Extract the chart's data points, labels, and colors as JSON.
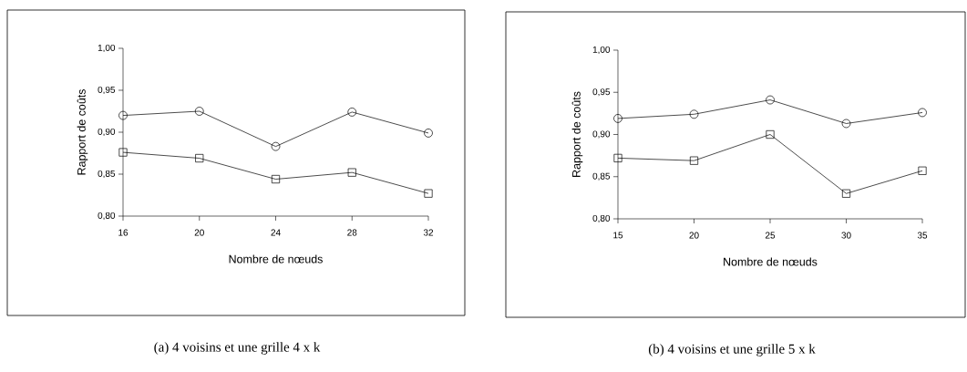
{
  "chart_data": [
    {
      "type": "line",
      "title": "(a) 4 voisins et une grille 4 x k",
      "xlabel": "Nombre de nœuds",
      "ylabel": "Rapport  de  coûts",
      "x": [
        16,
        20,
        24,
        28,
        32
      ],
      "xlim": [
        16,
        32
      ],
      "xticks": [
        16,
        20,
        24,
        28,
        32
      ],
      "ylim": [
        0.8,
        1.0
      ],
      "yticks": [
        {
          "value": 0.8,
          "label": "0,80"
        },
        {
          "value": 0.85,
          "label": "0,85"
        },
        {
          "value": 0.9,
          "label": "0,90"
        },
        {
          "value": 0.95,
          "label": "0,95"
        },
        {
          "value": 1.0,
          "label": "1,00"
        }
      ],
      "series": [
        {
          "color": "#000000",
          "marker": "circle",
          "values": [
            0.92,
            0.925,
            0.883,
            0.924,
            0.899
          ]
        },
        {
          "color": "#000000",
          "marker": "square",
          "values": [
            0.876,
            0.869,
            0.844,
            0.852,
            0.827
          ]
        }
      ]
    },
    {
      "type": "line",
      "title": "(b) 4 voisins et une grille 5 x k",
      "xlabel": "Nombre de nœuds",
      "ylabel": "Rapport  de  coûts",
      "x": [
        15,
        20,
        25,
        30,
        35
      ],
      "xlim": [
        15,
        35
      ],
      "xticks": [
        15,
        20,
        25,
        30,
        35
      ],
      "ylim": [
        0.8,
        1.0
      ],
      "yticks": [
        {
          "value": 0.8,
          "label": "0,80"
        },
        {
          "value": 0.85,
          "label": "0,85"
        },
        {
          "value": 0.9,
          "label": "0,90"
        },
        {
          "value": 0.95,
          "label": "0,95"
        },
        {
          "value": 1.0,
          "label": "1,00"
        }
      ],
      "series": [
        {
          "color": "#000000",
          "marker": "circle",
          "values": [
            0.919,
            0.924,
            0.941,
            0.913,
            0.926
          ]
        },
        {
          "color": "#000000",
          "marker": "square",
          "values": [
            0.872,
            0.869,
            0.9,
            0.83,
            0.857
          ]
        }
      ]
    }
  ]
}
